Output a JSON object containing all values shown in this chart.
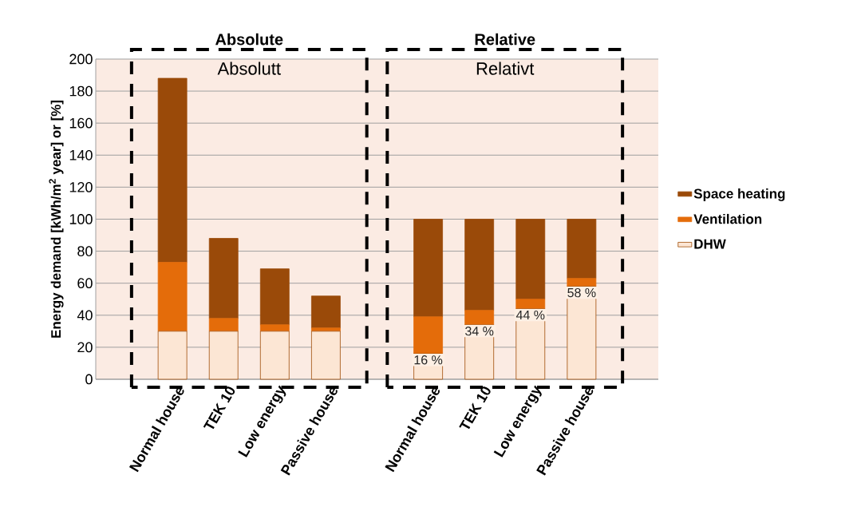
{
  "chart_data": {
    "type": "bar",
    "stacked": true,
    "ylabel": "Energy demand [kWh/m$^{2}$ year] or [%]",
    "categories": [
      null,
      "Normal house",
      "TEK 10",
      "Low energy",
      "Passive house",
      null,
      "Normal house",
      "TEK 10",
      "Low energy",
      "Passive house",
      null
    ],
    "series": [
      {
        "name": "DHW",
        "color": "#fce6d4",
        "values": [
          null,
          30,
          30,
          30,
          30,
          null,
          16,
          34,
          44,
          58,
          null
        ],
        "value_labels": [
          null,
          null,
          null,
          null,
          null,
          null,
          "16 %",
          "34 %",
          "44 %",
          "58 %",
          null
        ]
      },
      {
        "name": "Ventilation",
        "color": "#e46c0a",
        "values": [
          null,
          43,
          8,
          4,
          2,
          null,
          23,
          9,
          6,
          5,
          null
        ]
      },
      {
        "name": "Space heating",
        "color": "#9a4a09",
        "values": [
          null,
          115,
          50,
          35,
          20,
          null,
          61,
          57,
          50,
          37,
          null
        ]
      }
    ],
    "ylim": [
      0,
      200
    ],
    "yticks": [
      0,
      20,
      40,
      60,
      80,
      100,
      120,
      140,
      160,
      180,
      200
    ],
    "grid": "y",
    "legend": "right",
    "annotations": [
      "Absolute",
      "Absolutt",
      "Relative",
      "Relativt"
    ]
  }
}
